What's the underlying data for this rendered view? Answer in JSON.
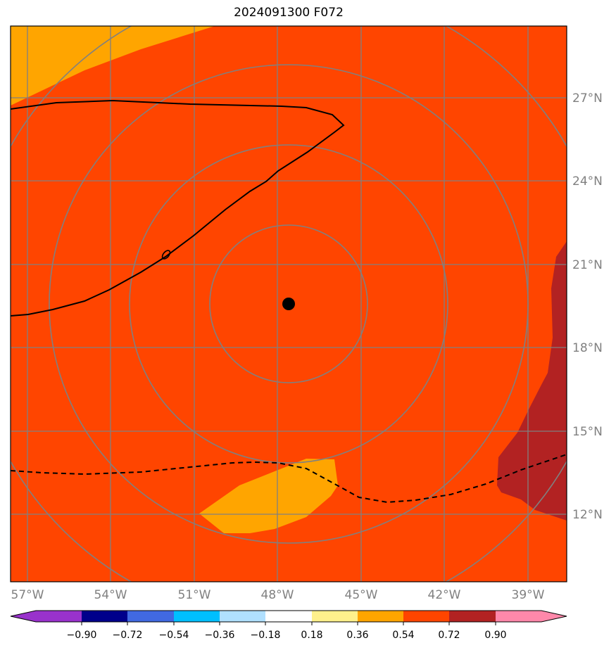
{
  "title": "2024091300 F072",
  "map": {
    "lon_range": [
      -58,
      -38
    ],
    "lat_range": [
      9.5,
      29.5
    ],
    "lat_labels": [
      "12°N",
      "15°N",
      "18°N",
      "21°N",
      "24°N",
      "27°N"
    ],
    "lon_labels": [
      "57°W",
      "54°W",
      "51°W",
      "48°W",
      "45°W",
      "42°W",
      "39°W"
    ],
    "center_marker": {
      "lon": -47.7,
      "lat": 19.6
    }
  },
  "colorbar": {
    "ticks": [
      "−0.90",
      "−0.72",
      "−0.54",
      "−0.36",
      "−0.18",
      "0.18",
      "0.36",
      "0.54",
      "0.72",
      "0.90"
    ],
    "colors": [
      "#9932cc",
      "#00008b",
      "#4169e1",
      "#00bfff",
      "#b0e0ff",
      "#ffffff",
      "#fff08c",
      "#ffa500",
      "#ff4500",
      "#b22222",
      "#ff88aa"
    ]
  },
  "colors": {
    "field_main": "#ff4500",
    "field_low": "#ffa500",
    "field_high": "#b22222",
    "grid": "#808080",
    "contour": "#000000"
  }
}
